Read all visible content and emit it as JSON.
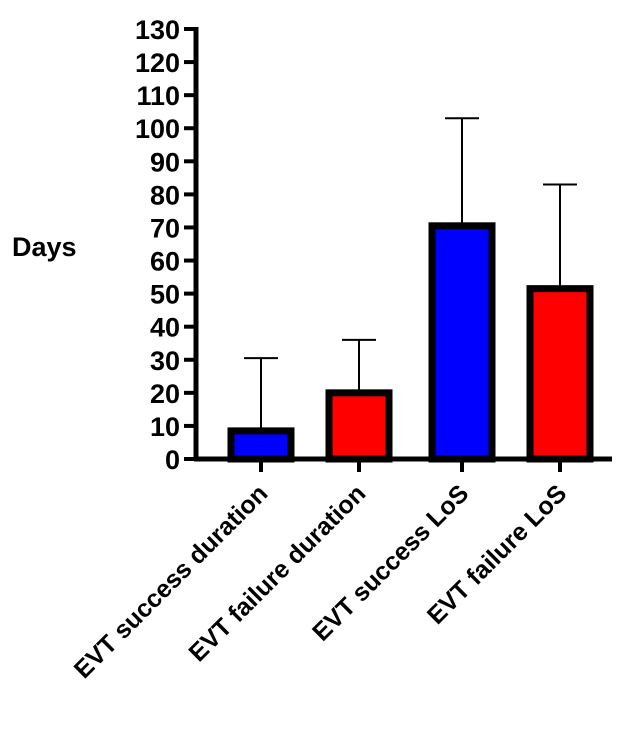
{
  "chart_data": {
    "type": "bar",
    "title": "",
    "ylabel": "Days",
    "xlabel": "",
    "ylim": [
      0,
      130
    ],
    "yticks": [
      0,
      10,
      20,
      30,
      40,
      50,
      60,
      70,
      80,
      90,
      100,
      110,
      120,
      130
    ],
    "categories": [
      "EVT success duration",
      "EVT failure duration",
      "EVT success LoS",
      "EVT failure LoS"
    ],
    "values": [
      8.5,
      20,
      70.5,
      51.5
    ],
    "error_upper": [
      30.5,
      36,
      103,
      83
    ],
    "bar_colors": [
      "#0000ff",
      "#ff0000",
      "#0000ff",
      "#ff0000"
    ],
    "grid": false,
    "legend": false
  }
}
